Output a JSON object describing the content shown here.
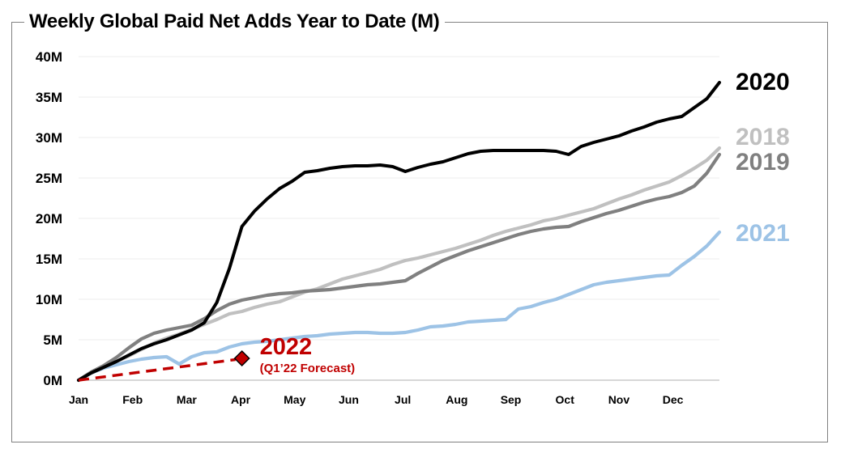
{
  "chart_data": {
    "type": "line",
    "title": "Weekly Global Paid Net Adds Year to Date (M)",
    "xlabel": "",
    "ylabel": "",
    "ylim": [
      0,
      40
    ],
    "xlim": [
      0,
      51
    ],
    "grid": true,
    "y_ticks": [
      "0M",
      "5M",
      "10M",
      "15M",
      "20M",
      "25M",
      "30M",
      "35M",
      "40M"
    ],
    "x_ticks": [
      {
        "label": "Jan",
        "x": 0
      },
      {
        "label": "Feb",
        "x": 4.3
      },
      {
        "label": "Mar",
        "x": 8.6
      },
      {
        "label": "Apr",
        "x": 12.9
      },
      {
        "label": "May",
        "x": 17.2
      },
      {
        "label": "Jun",
        "x": 21.5
      },
      {
        "label": "Jul",
        "x": 25.8
      },
      {
        "label": "Aug",
        "x": 30.1
      },
      {
        "label": "Sep",
        "x": 34.4
      },
      {
        "label": "Oct",
        "x": 38.7
      },
      {
        "label": "Nov",
        "x": 43.0
      },
      {
        "label": "Dec",
        "x": 47.3
      }
    ],
    "x_unit": "week of year",
    "series": [
      {
        "name": "2020",
        "color": "#000000",
        "x": [
          0,
          1,
          2,
          3,
          4,
          5,
          6,
          7,
          8,
          9,
          10,
          11,
          12,
          13,
          14,
          15,
          16,
          17,
          18,
          19,
          20,
          21,
          22,
          23,
          24,
          25,
          26,
          27,
          28,
          29,
          30,
          31,
          32,
          33,
          34,
          35,
          36,
          37,
          38,
          39,
          40,
          41,
          42,
          43,
          44,
          45,
          46,
          47,
          48,
          49,
          50,
          51
        ],
        "values": [
          0,
          0.9,
          1.6,
          2.3,
          3.1,
          3.9,
          4.5,
          5.0,
          5.6,
          6.2,
          7.1,
          9.6,
          13.8,
          19.0,
          20.9,
          22.4,
          23.7,
          24.6,
          25.7,
          25.9,
          26.2,
          26.4,
          26.5,
          26.5,
          26.6,
          26.4,
          25.8,
          26.3,
          26.7,
          27.0,
          27.5,
          28.0,
          28.3,
          28.4,
          28.4,
          28.4,
          28.4,
          28.4,
          28.3,
          27.9,
          28.9,
          29.4,
          29.8,
          30.2,
          30.8,
          31.3,
          31.9,
          32.3,
          32.6,
          33.7,
          34.8,
          36.8
        ]
      },
      {
        "name": "2018",
        "color": "#c0c0c0",
        "x": [
          0,
          1,
          2,
          3,
          4,
          5,
          6,
          7,
          8,
          9,
          10,
          11,
          12,
          13,
          14,
          15,
          16,
          17,
          18,
          19,
          20,
          21,
          22,
          23,
          24,
          25,
          26,
          27,
          28,
          29,
          30,
          31,
          32,
          33,
          34,
          35,
          36,
          37,
          38,
          39,
          40,
          41,
          42,
          43,
          44,
          45,
          46,
          47,
          48,
          49,
          50,
          51
        ],
        "values": [
          0,
          0.9,
          1.6,
          2.3,
          3.0,
          3.8,
          4.6,
          5.2,
          5.7,
          6.3,
          6.9,
          7.5,
          8.2,
          8.5,
          9.0,
          9.4,
          9.7,
          10.3,
          10.9,
          11.3,
          11.9,
          12.5,
          12.9,
          13.3,
          13.7,
          14.3,
          14.8,
          15.1,
          15.5,
          15.9,
          16.3,
          16.8,
          17.3,
          17.9,
          18.4,
          18.8,
          19.2,
          19.7,
          20.0,
          20.4,
          20.8,
          21.2,
          21.8,
          22.4,
          22.9,
          23.5,
          24.0,
          24.5,
          25.3,
          26.2,
          27.2,
          28.7
        ]
      },
      {
        "name": "2019",
        "color": "#808080",
        "x": [
          0,
          1,
          2,
          3,
          4,
          5,
          6,
          7,
          8,
          9,
          10,
          11,
          12,
          13,
          14,
          15,
          16,
          17,
          18,
          19,
          20,
          21,
          22,
          23,
          24,
          25,
          26,
          27,
          28,
          29,
          30,
          31,
          32,
          33,
          34,
          35,
          36,
          37,
          38,
          39,
          40,
          41,
          42,
          43,
          44,
          45,
          46,
          47,
          48,
          49,
          50,
          51
        ],
        "values": [
          0,
          1.0,
          1.8,
          2.8,
          4.0,
          5.1,
          5.8,
          6.2,
          6.5,
          6.8,
          7.6,
          8.6,
          9.4,
          9.9,
          10.2,
          10.5,
          10.7,
          10.8,
          11.0,
          11.1,
          11.2,
          11.4,
          11.6,
          11.8,
          11.9,
          12.1,
          12.3,
          13.2,
          14.0,
          14.8,
          15.4,
          16.0,
          16.5,
          17.0,
          17.5,
          18.0,
          18.4,
          18.7,
          18.9,
          19.0,
          19.6,
          20.1,
          20.6,
          21.0,
          21.5,
          22.0,
          22.4,
          22.7,
          23.2,
          24.0,
          25.6,
          27.9
        ]
      },
      {
        "name": "2021",
        "color": "#9dc3e6",
        "x": [
          0,
          1,
          2,
          3,
          4,
          5,
          6,
          7,
          8,
          9,
          10,
          11,
          12,
          13,
          14,
          15,
          16,
          17,
          18,
          19,
          20,
          21,
          22,
          23,
          24,
          25,
          26,
          27,
          28,
          29,
          30,
          31,
          32,
          33,
          34,
          35,
          36,
          37,
          38,
          39,
          40,
          41,
          42,
          43,
          44,
          45,
          46,
          47,
          48,
          49,
          50,
          51
        ],
        "values": [
          0,
          0.9,
          1.5,
          1.9,
          2.3,
          2.6,
          2.8,
          2.9,
          2.0,
          2.9,
          3.4,
          3.5,
          4.1,
          4.5,
          4.7,
          4.8,
          5.0,
          5.2,
          5.4,
          5.5,
          5.7,
          5.8,
          5.9,
          5.9,
          5.8,
          5.8,
          5.9,
          6.2,
          6.6,
          6.7,
          6.9,
          7.2,
          7.3,
          7.4,
          7.5,
          8.8,
          9.1,
          9.6,
          10.0,
          10.6,
          11.2,
          11.8,
          12.1,
          12.3,
          12.5,
          12.7,
          12.9,
          13.0,
          14.2,
          15.3,
          16.6,
          18.3
        ]
      },
      {
        "name": "2022",
        "color": "#c00000",
        "style": "dashed",
        "x": [
          0,
          13
        ],
        "values": [
          0,
          2.7
        ]
      }
    ],
    "annotations": [
      {
        "text": "2022",
        "subtext": "(Q1’22 Forecast)",
        "color": "#c00000",
        "marker": "diamond",
        "x": 13,
        "y": 2.7
      }
    ]
  }
}
